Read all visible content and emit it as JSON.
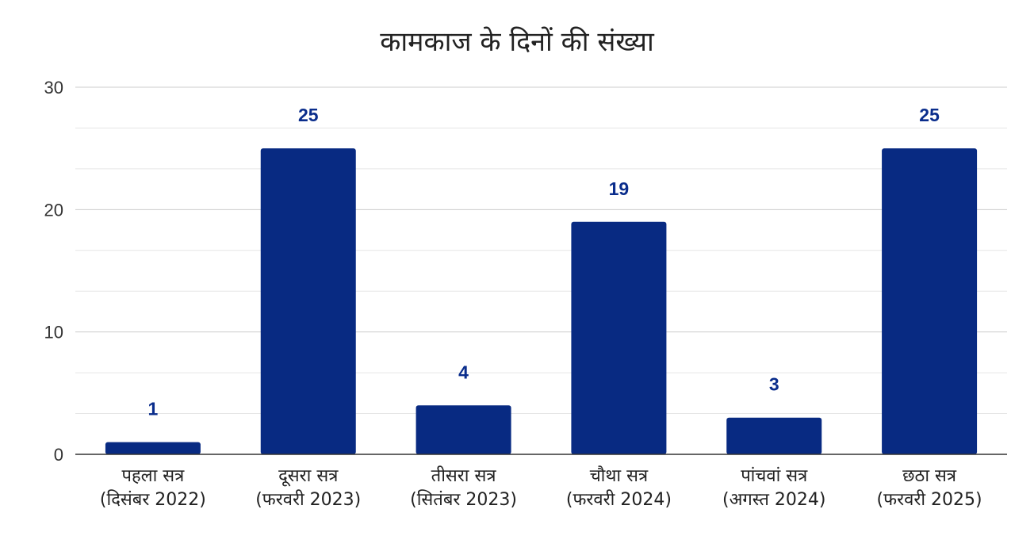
{
  "chart_data": {
    "type": "bar",
    "title": "कामकाज के दिनों की संख्या",
    "xlabel": "",
    "ylabel": "",
    "categories": [
      [
        "पहला सत्र",
        "(दिसंबर 2022)"
      ],
      [
        "दूसरा सत्र",
        "(फरवरी 2023)"
      ],
      [
        "तीसरा सत्र",
        "(सितंबर 2023)"
      ],
      [
        "चौथा सत्र",
        "(फरवरी 2024)"
      ],
      [
        "पांचवां सत्र",
        "(अगस्त 2024)"
      ],
      [
        "छठा सत्र",
        "(फरवरी 2025)"
      ]
    ],
    "values": [
      1,
      25,
      4,
      19,
      3,
      25
    ],
    "ylim": [
      0,
      30
    ],
    "yticks": [
      "0",
      "10",
      "20",
      "30"
    ],
    "grid": true,
    "minor_grid": true,
    "legend": "none",
    "colors": {
      "bar": "#082a82",
      "label": "#0a2d8c",
      "grid": "#cccccc",
      "minor_grid": "#e6e6e6",
      "axis": "#333333"
    }
  }
}
